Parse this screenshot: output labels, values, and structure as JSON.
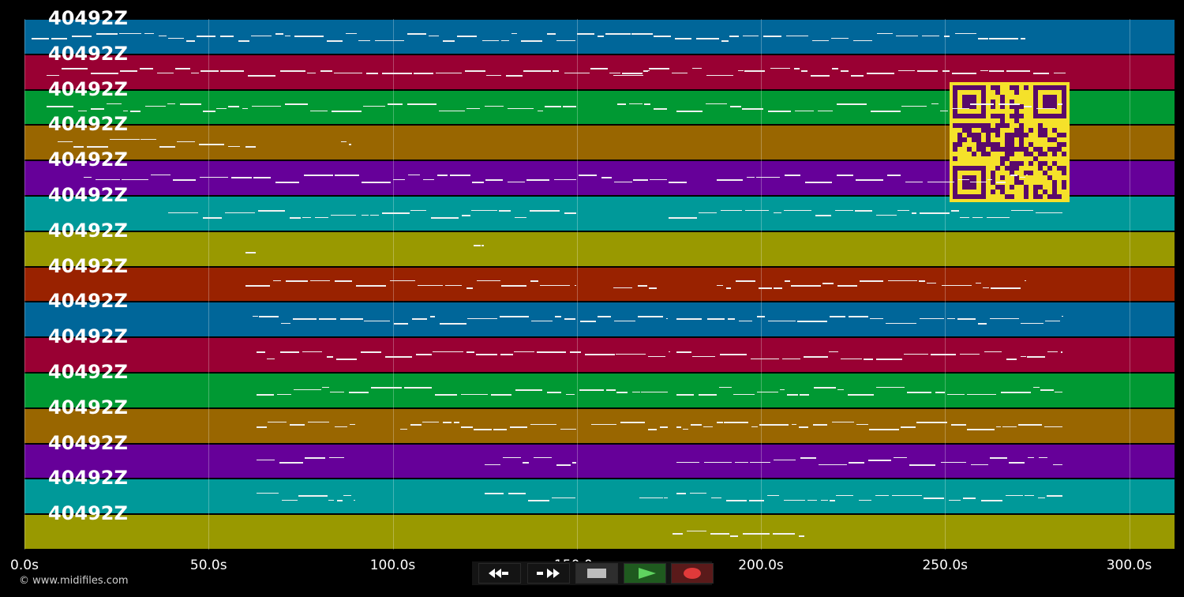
{
  "tracks": [
    {
      "label": "40492Z",
      "color": "#006699"
    },
    {
      "label": "40492Z",
      "color": "#990033"
    },
    {
      "label": "40492Z",
      "color": "#009933"
    },
    {
      "label": "40492Z",
      "color": "#996600"
    },
    {
      "label": "40492Z",
      "color": "#660099"
    },
    {
      "label": "40492Z",
      "color": "#009999"
    },
    {
      "label": "40492Z",
      "color": "#999900"
    },
    {
      "label": "40492Z",
      "color": "#992200"
    },
    {
      "label": "40492Z",
      "color": "#006699"
    },
    {
      "label": "40492Z",
      "color": "#990033"
    },
    {
      "label": "40492Z",
      "color": "#009933"
    },
    {
      "label": "40492Z",
      "color": "#996600"
    },
    {
      "label": "40492Z",
      "color": "#660099"
    },
    {
      "label": "40492Z",
      "color": "#009999"
    },
    {
      "label": "40492Z",
      "color": "#999900"
    }
  ],
  "time_axis": {
    "ticks": [
      "0.0s",
      "50.0s",
      "100.0s",
      "150.0s",
      "200.0s",
      "250.0s",
      "300.0s"
    ],
    "tick_values": [
      0,
      50,
      100,
      150,
      200,
      250,
      300
    ]
  },
  "copyright": "© www.midifiles.com",
  "controls": [
    {
      "name": "rewind-button",
      "icon": "rewind-icon",
      "color": "#1a1a1a"
    },
    {
      "name": "fast-forward-button",
      "icon": "fast-forward-icon",
      "color": "#1a1a1a"
    },
    {
      "name": "stop-button",
      "icon": "stop-icon",
      "color": "#2e2e2e"
    },
    {
      "name": "play-button",
      "icon": "play-icon",
      "color": "#1f5a1f"
    },
    {
      "name": "record-button",
      "icon": "record-icon",
      "color": "#5a1a1a"
    }
  ],
  "qr_code": {
    "icon": "qr-code-icon",
    "fg": "#5a0a6a",
    "bg": "#f5e12a"
  }
}
